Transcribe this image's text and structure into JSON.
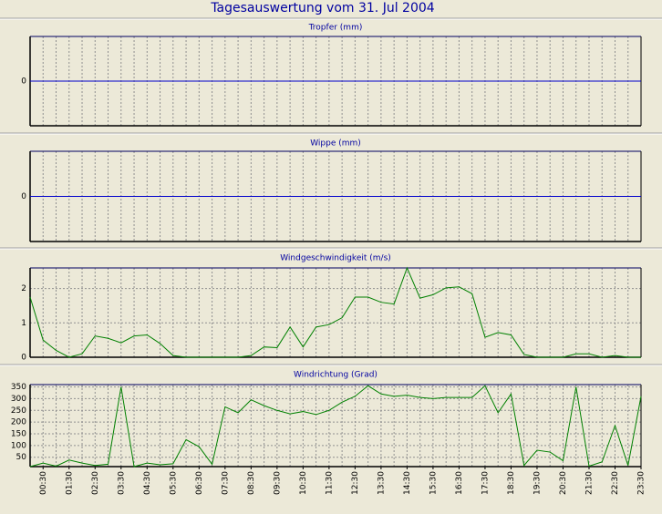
{
  "title": "Tagesauswertung vom 31. Jul 2004",
  "chart_data": [
    {
      "type": "line",
      "title": "Tropfer (mm)",
      "x": [
        0,
        0.5,
        1,
        1.5,
        2,
        2.5,
        3,
        3.5,
        4,
        4.5,
        5,
        5.5,
        6,
        6.5,
        7,
        7.5,
        8,
        8.5,
        9,
        9.5,
        10,
        10.5,
        11,
        11.5,
        12,
        12.5,
        13,
        13.5,
        14,
        14.5,
        15,
        15.5,
        16,
        16.5,
        17,
        17.5,
        18,
        18.5,
        19,
        19.5,
        20,
        20.5,
        21,
        21.5,
        22,
        22.5,
        23,
        23.5
      ],
      "values": [
        0,
        0,
        0,
        0,
        0,
        0,
        0,
        0,
        0,
        0,
        0,
        0,
        0,
        0,
        0,
        0,
        0,
        0,
        0,
        0,
        0,
        0,
        0,
        0,
        0,
        0,
        0,
        0,
        0,
        0,
        0,
        0,
        0,
        0,
        0,
        0,
        0,
        0,
        0,
        0,
        0,
        0,
        0,
        0,
        0,
        0,
        0,
        0
      ],
      "color": "#0000cc",
      "xlim": [
        0,
        23.5
      ],
      "ylim": [
        -1,
        1
      ],
      "yticks": [
        0
      ],
      "grid": true
    },
    {
      "type": "line",
      "title": "Wippe (mm)",
      "x": [
        0,
        0.5,
        1,
        1.5,
        2,
        2.5,
        3,
        3.5,
        4,
        4.5,
        5,
        5.5,
        6,
        6.5,
        7,
        7.5,
        8,
        8.5,
        9,
        9.5,
        10,
        10.5,
        11,
        11.5,
        12,
        12.5,
        13,
        13.5,
        14,
        14.5,
        15,
        15.5,
        16,
        16.5,
        17,
        17.5,
        18,
        18.5,
        19,
        19.5,
        20,
        20.5,
        21,
        21.5,
        22,
        22.5,
        23,
        23.5
      ],
      "values": [
        0,
        0,
        0,
        0,
        0,
        0,
        0,
        0,
        0,
        0,
        0,
        0,
        0,
        0,
        0,
        0,
        0,
        0,
        0,
        0,
        0,
        0,
        0,
        0,
        0,
        0,
        0,
        0,
        0,
        0,
        0,
        0,
        0,
        0,
        0,
        0,
        0,
        0,
        0,
        0,
        0,
        0,
        0,
        0,
        0,
        0,
        0,
        0
      ],
      "color": "#0000cc",
      "xlim": [
        0,
        23.5
      ],
      "ylim": [
        -1,
        1
      ],
      "yticks": [
        0
      ],
      "grid": true
    },
    {
      "type": "line",
      "title": "Windgeschwindigkeit (m/s)",
      "x": [
        0,
        0.5,
        1,
        1.5,
        2,
        2.5,
        3,
        3.5,
        4,
        4.5,
        5,
        5.5,
        6,
        6.5,
        7,
        7.5,
        8,
        8.5,
        9,
        9.5,
        10,
        10.5,
        11,
        11.5,
        12,
        12.5,
        13,
        13.5,
        14,
        14.5,
        15,
        15.5,
        16,
        16.5,
        17,
        17.5,
        18,
        18.5,
        19,
        19.5,
        20,
        20.5,
        21,
        21.5,
        22,
        22.5,
        23,
        23.5
      ],
      "values": [
        1.75,
        0.5,
        0.2,
        0,
        0.1,
        0.62,
        0.55,
        0.42,
        0.62,
        0.65,
        0.4,
        0.05,
        0,
        0,
        0,
        0,
        0,
        0.05,
        0.3,
        0.28,
        0.88,
        0.3,
        0.88,
        0.95,
        1.15,
        1.75,
        1.75,
        1.6,
        1.55,
        2.6,
        1.72,
        1.82,
        2.02,
        2.05,
        1.85,
        0.58,
        0.72,
        0.65,
        0.08,
        0,
        0,
        0,
        0.1,
        0.1,
        0,
        0.05,
        0,
        0
      ],
      "color": "#008000",
      "xlim": [
        0,
        23.5
      ],
      "ylim": [
        0,
        2.6
      ],
      "yticks": [
        0,
        1,
        2
      ],
      "grid": true
    },
    {
      "type": "line",
      "title": "Windrichtung (Grad)",
      "x": [
        0,
        0.5,
        1,
        1.5,
        2,
        2.5,
        3,
        3.5,
        4,
        4.5,
        5,
        5.5,
        6,
        6.5,
        7,
        7.5,
        8,
        8.5,
        9,
        9.5,
        10,
        10.5,
        11,
        11.5,
        12,
        12.5,
        13,
        13.5,
        14,
        14.5,
        15,
        15.5,
        16,
        16.5,
        17,
        17.5,
        18,
        18.5,
        19,
        19.5,
        20,
        20.5,
        21,
        21.5,
        22,
        22.5,
        23,
        23.5
      ],
      "values": [
        10,
        25,
        12,
        38,
        25,
        15,
        20,
        350,
        10,
        25,
        18,
        22,
        125,
        95,
        20,
        265,
        240,
        295,
        270,
        250,
        235,
        245,
        232,
        250,
        285,
        310,
        355,
        320,
        310,
        315,
        305,
        300,
        305,
        305,
        305,
        355,
        240,
        320,
        15,
        80,
        72,
        35,
        350,
        12,
        30,
        185,
        15,
        310
      ],
      "color": "#008000",
      "xlim": [
        0,
        23.5
      ],
      "ylim": [
        10,
        360
      ],
      "yticks": [
        50,
        100,
        150,
        200,
        250,
        300,
        350
      ],
      "grid": true,
      "xticks": [
        {
          "value": 0.5,
          "label": "00:30"
        },
        {
          "value": 1.5,
          "label": "01:30"
        },
        {
          "value": 2.5,
          "label": "02:30"
        },
        {
          "value": 3.5,
          "label": "03:30"
        },
        {
          "value": 4.5,
          "label": "04:30"
        },
        {
          "value": 5.5,
          "label": "05:30"
        },
        {
          "value": 6.5,
          "label": "06:30"
        },
        {
          "value": 7.5,
          "label": "07:30"
        },
        {
          "value": 8.5,
          "label": "08:30"
        },
        {
          "value": 9.5,
          "label": "09:30"
        },
        {
          "value": 10.5,
          "label": "10:30"
        },
        {
          "value": 11.5,
          "label": "11:30"
        },
        {
          "value": 12.5,
          "label": "12:30"
        },
        {
          "value": 13.5,
          "label": "13:30"
        },
        {
          "value": 14.5,
          "label": "14:30"
        },
        {
          "value": 15.5,
          "label": "15:30"
        },
        {
          "value": 16.5,
          "label": "16:30"
        },
        {
          "value": 17.5,
          "label": "17:30"
        },
        {
          "value": 18.5,
          "label": "18:30"
        },
        {
          "value": 19.5,
          "label": "19:30"
        },
        {
          "value": 20.5,
          "label": "20:30"
        },
        {
          "value": 21.5,
          "label": "21:30"
        },
        {
          "value": 22.5,
          "label": "22:30"
        },
        {
          "value": 23.5,
          "label": "23:30"
        }
      ]
    }
  ]
}
